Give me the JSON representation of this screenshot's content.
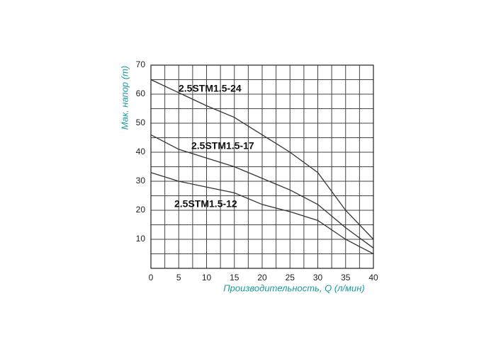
{
  "chart_data": {
    "type": "line",
    "x_label": "Производительность, Q (л/мин)",
    "y_label": "Мак. напор (m)",
    "x": [
      0,
      5,
      10,
      15,
      20,
      25,
      30,
      35,
      40
    ],
    "series": [
      {
        "name": "2.5STM1.5-24",
        "color": "#333333",
        "values": [
          65,
          60.5,
          56,
          52,
          46,
          40,
          33,
          20,
          10
        ]
      },
      {
        "name": "2.5STM1.5-17",
        "color": "#333333",
        "values": [
          46,
          41,
          38,
          35,
          31,
          27,
          22,
          14,
          7
        ]
      },
      {
        "name": "2.5STM1.5-12",
        "color": "#333333",
        "values": [
          33,
          30,
          28,
          26,
          22,
          19.5,
          16.5,
          10,
          5
        ]
      }
    ],
    "xlim": [
      0,
      40
    ],
    "xticks": [
      0,
      5,
      10,
      15,
      20,
      25,
      30,
      35,
      40
    ],
    "ylim": [
      0,
      70
    ],
    "yticks": [
      10,
      20,
      30,
      40,
      50,
      60,
      70
    ],
    "grid": true
  }
}
